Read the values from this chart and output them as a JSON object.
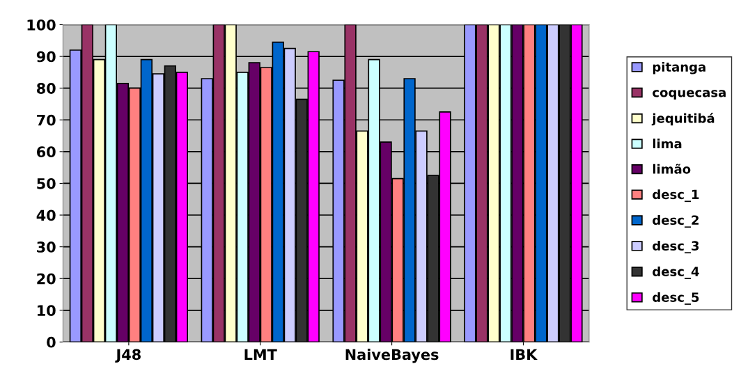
{
  "chart_data": {
    "type": "bar",
    "categories": [
      "J48",
      "LMT",
      "NaiveBayes",
      "IBK"
    ],
    "series": [
      {
        "name": "pitanga",
        "color": "#9999ff",
        "values": [
          92,
          83,
          82.5,
          100
        ]
      },
      {
        "name": "coquecasa",
        "color": "#993366",
        "values": [
          100,
          100,
          100,
          100
        ]
      },
      {
        "name": "jequitibá",
        "color": "#ffffcc",
        "values": [
          89,
          100,
          66.5,
          100
        ]
      },
      {
        "name": "lima",
        "color": "#ccffff",
        "values": [
          100,
          85,
          89,
          100
        ]
      },
      {
        "name": "limão",
        "color": "#660066",
        "values": [
          81.5,
          88,
          63,
          100
        ]
      },
      {
        "name": "desc_1",
        "color": "#ff8080",
        "values": [
          80,
          86.5,
          51.5,
          100
        ]
      },
      {
        "name": "desc_2",
        "color": "#0066cc",
        "values": [
          89,
          94.5,
          83,
          100
        ]
      },
      {
        "name": "desc_3",
        "color": "#ccccff",
        "values": [
          84.5,
          92.5,
          66.5,
          100
        ]
      },
      {
        "name": "desc_4",
        "color": "#333333",
        "values": [
          87,
          76.5,
          52.5,
          100
        ]
      },
      {
        "name": "desc_5",
        "color": "#ff00ff",
        "values": [
          85,
          91.5,
          72.5,
          100
        ]
      }
    ],
    "ylim": [
      0,
      100
    ],
    "yticks": [
      0,
      10,
      20,
      30,
      40,
      50,
      60,
      70,
      80,
      90,
      100
    ],
    "grid": "y",
    "legend": "right"
  }
}
